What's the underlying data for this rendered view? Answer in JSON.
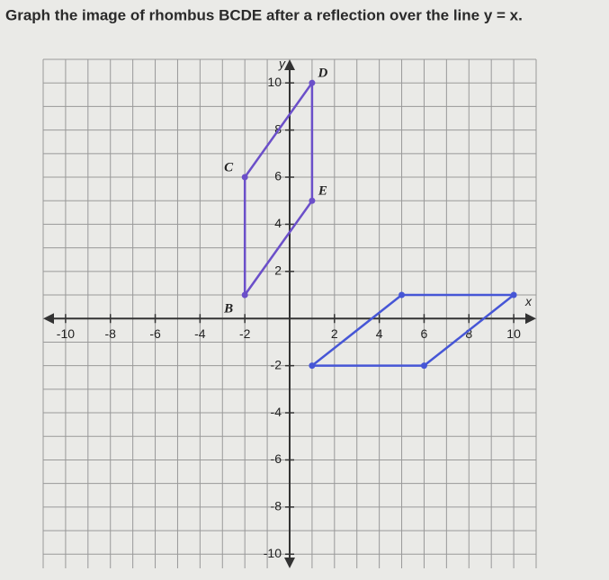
{
  "question": "Graph the image of rhombus BCDE after a reflection over the line y = x.",
  "chart_data": {
    "type": "polygon",
    "xlabel": "x",
    "ylabel": "y",
    "xlim": [
      -11,
      11
    ],
    "ylim": [
      -10.6,
      11
    ],
    "xticks": [
      -10,
      -8,
      -6,
      -4,
      -2,
      2,
      4,
      6,
      8,
      10
    ],
    "yticks": [
      -10,
      -8,
      -6,
      -4,
      -2,
      2,
      4,
      6,
      8,
      10
    ],
    "xgrid": [
      -11,
      -10,
      -9,
      -8,
      -7,
      -6,
      -5,
      -4,
      -3,
      -2,
      -1,
      1,
      2,
      3,
      4,
      5,
      6,
      7,
      8,
      9,
      10,
      11
    ],
    "ygrid": [
      -10,
      -9,
      -8,
      -7,
      -6,
      -5,
      -4,
      -3,
      -2,
      -1,
      1,
      2,
      3,
      4,
      5,
      6,
      7,
      8,
      9,
      10,
      11
    ],
    "series": [
      {
        "color": "#6b4fc9",
        "x": [
          -2,
          -2,
          1,
          1
        ],
        "values": [
          1,
          6,
          10,
          5
        ],
        "point_labels": [
          "B",
          "C",
          "D",
          "E"
        ]
      },
      {
        "color": "#4656d6",
        "x": [
          1,
          6,
          10,
          5
        ],
        "values": [
          -2,
          -2,
          1,
          1
        ]
      }
    ]
  }
}
